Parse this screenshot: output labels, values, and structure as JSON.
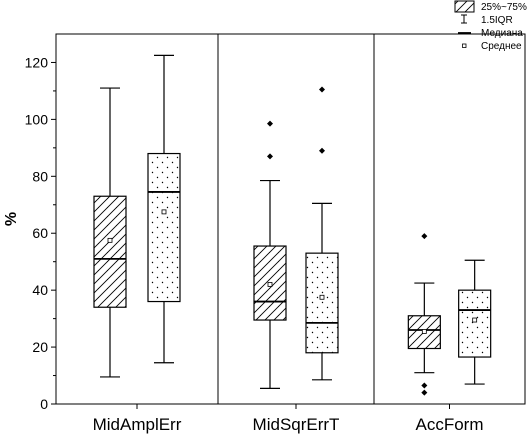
{
  "chart_data": {
    "type": "box",
    "ylabel": "%",
    "ylim": [
      0,
      130
    ],
    "yticks": [
      0,
      20,
      40,
      60,
      80,
      100,
      120
    ],
    "groups": [
      "MidAmplErr",
      "MidSqrErrT",
      "AccForm"
    ],
    "legend": {
      "position": "top-right",
      "items": [
        "25%~75%",
        "1.5IQR",
        "Медиана",
        "Среднее"
      ]
    },
    "boxes": [
      {
        "group": 0,
        "fill": "hatch",
        "whisker_low": 9.5,
        "q1": 34,
        "median": 51,
        "q3": 73,
        "whisker_high": 111,
        "mean": 57.5,
        "outliers": []
      },
      {
        "group": 0,
        "fill": "dots",
        "whisker_low": 14.5,
        "q1": 36,
        "median": 74.5,
        "q3": 88,
        "whisker_high": 122.5,
        "mean": 67.5,
        "outliers": []
      },
      {
        "group": 1,
        "fill": "hatch",
        "whisker_low": 5.5,
        "q1": 29.5,
        "median": 36,
        "q3": 55.5,
        "whisker_high": 78.5,
        "mean": 42,
        "outliers": [
          87,
          98.5
        ]
      },
      {
        "group": 1,
        "fill": "dots",
        "whisker_low": 8.5,
        "q1": 18,
        "median": 28.5,
        "q3": 53,
        "whisker_high": 70.5,
        "mean": 37.5,
        "outliers": [
          89,
          110.5
        ]
      },
      {
        "group": 2,
        "fill": "hatch",
        "whisker_low": 11,
        "q1": 19.5,
        "median": 26,
        "q3": 31,
        "whisker_high": 42.5,
        "mean": 25.5,
        "outliers": [
          59,
          6.5,
          4
        ]
      },
      {
        "group": 2,
        "fill": "dots",
        "whisker_low": 7,
        "q1": 16.5,
        "median": 33,
        "q3": 40,
        "whisker_high": 50.5,
        "mean": 29.5,
        "outliers": []
      }
    ]
  }
}
